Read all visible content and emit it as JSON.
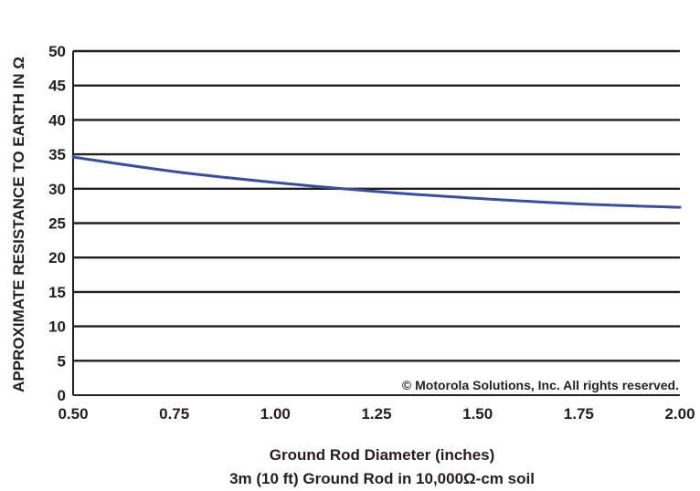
{
  "chart_data": {
    "type": "line",
    "xlabel": "Ground Rod Diameter (inches)",
    "subtitle": "3m (10 ft) Ground Rod in 10,000Ω-cm soil",
    "ylabel": "APPROXIMATE RESISTANCE TO EARTH IN Ω",
    "annotation": "© Motorola Solutions, Inc. All rights reserved.",
    "xlim": [
      0.5,
      2.0
    ],
    "ylim": [
      0,
      50
    ],
    "x_ticks": [
      "0.50",
      "0.75",
      "1.00",
      "1.25",
      "1.50",
      "1.75",
      "2.00"
    ],
    "y_ticks": [
      "0",
      "5",
      "10",
      "15",
      "20",
      "25",
      "30",
      "35",
      "40",
      "45",
      "50"
    ],
    "grid": true,
    "series": [
      {
        "color": "#3a4e9c",
        "x": [
          0.5,
          0.75,
          1.0,
          1.25,
          1.5,
          1.75,
          2.0
        ],
        "y": [
          34.6,
          32.5,
          30.9,
          29.6,
          28.6,
          27.8,
          27.3
        ]
      }
    ]
  }
}
